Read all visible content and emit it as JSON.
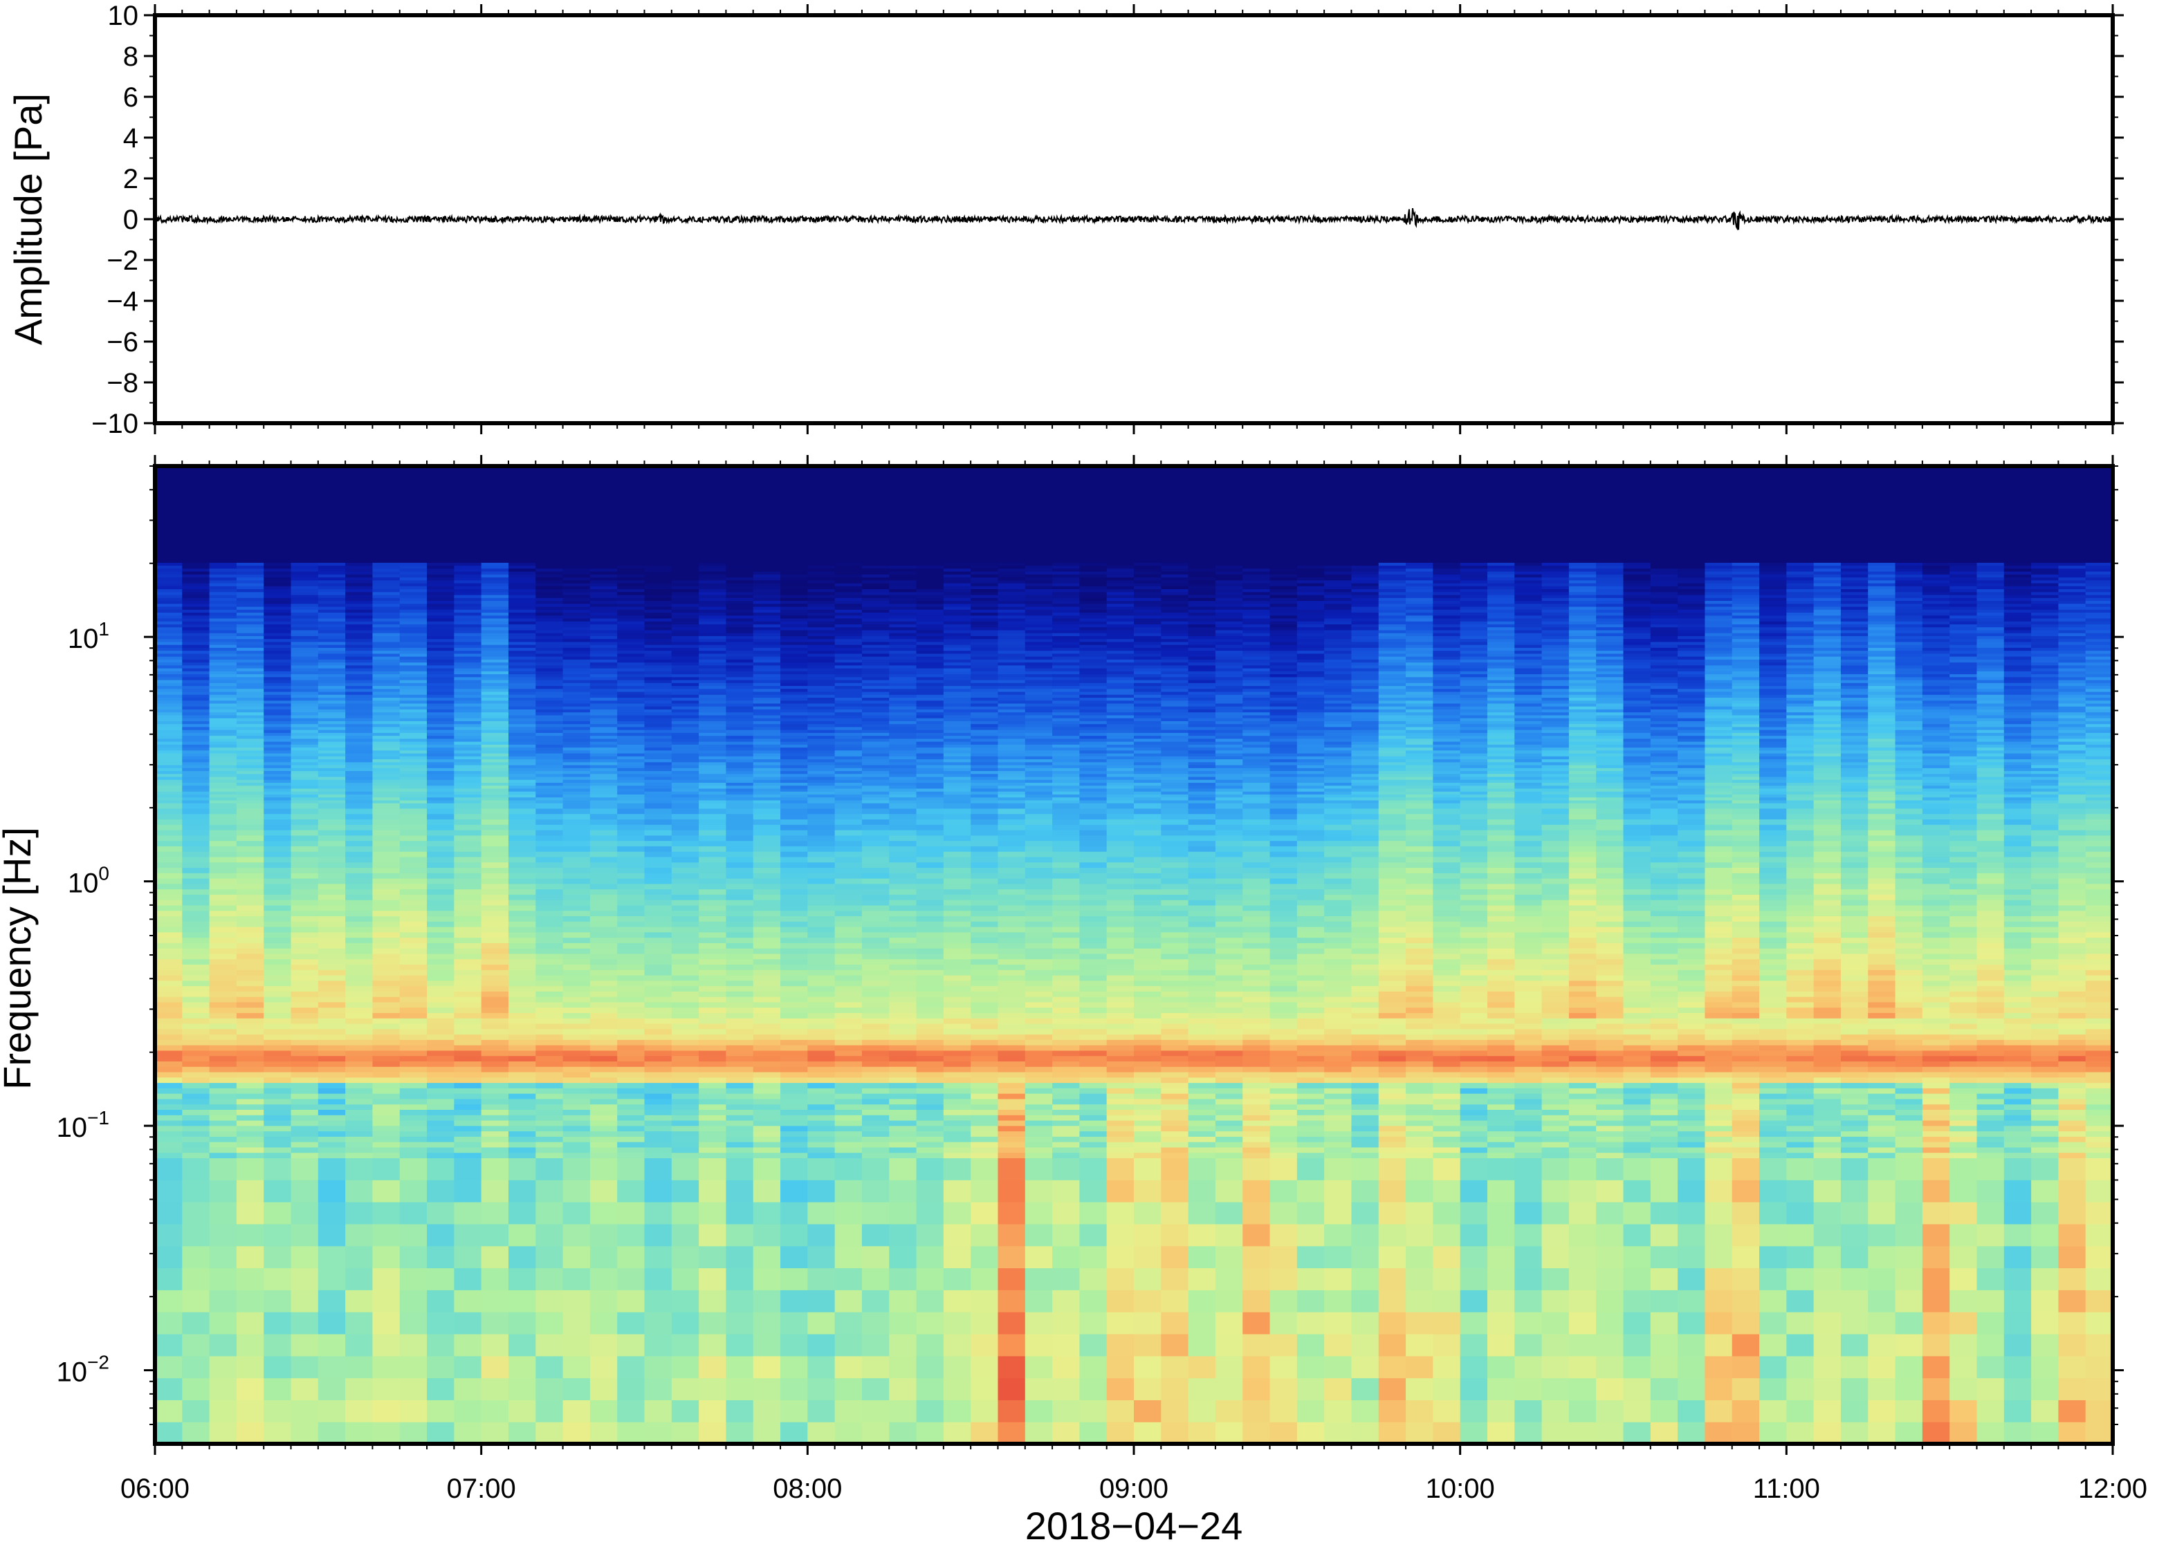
{
  "chart_data": [
    {
      "type": "line",
      "panel": "waveform",
      "ylabel": "Amplitude [Pa]",
      "ylim": [
        -10,
        10
      ],
      "yticks": [
        -10,
        -8,
        -6,
        -4,
        -2,
        0,
        2,
        4,
        6,
        8,
        10
      ],
      "ytick_labels": [
        "−10",
        "−8",
        "−6",
        "−4",
        "−2",
        "0",
        "2",
        "4",
        "6",
        "8",
        "10"
      ],
      "x_range": [
        "06:00",
        "12:00"
      ],
      "series": [
        {
          "color": "#000000",
          "mean": 0,
          "typical_peak": 0.15,
          "bursts": [
            {
              "time_hours": 9.85,
              "peak": 0.6
            },
            {
              "time_hours": 10.85,
              "peak": 0.55
            },
            {
              "time_hours": 7.55,
              "peak": 0.25
            }
          ]
        }
      ]
    },
    {
      "type": "heatmap",
      "panel": "spectrogram",
      "ylabel": "Frequency [Hz]",
      "xlabel": "2018−04−24",
      "x": [
        "06:00",
        "07:00",
        "08:00",
        "09:00",
        "10:00",
        "11:00",
        "12:00"
      ],
      "y_scale": "log",
      "ylim": [
        0.005,
        50
      ],
      "yticks": [
        {
          "base": "10",
          "exp": "−2",
          "value": 0.01
        },
        {
          "base": "10",
          "exp": "−1",
          "value": 0.1
        },
        {
          "base": "10",
          "exp": "0",
          "value": 1
        },
        {
          "base": "10",
          "exp": "1",
          "value": 10
        }
      ],
      "colormap": [
        "#0a0a78",
        "#0a1eb4",
        "#1450dc",
        "#2a8ef0",
        "#48c8f0",
        "#78e0c8",
        "#b0f0a0",
        "#e8f08c",
        "#f8c870",
        "#f88c50",
        "#e84a3a"
      ],
      "microbarom_band_hz": [
        0.15,
        0.28
      ],
      "microbarom_peak_hz": 0.19,
      "activity_hours": [
        6.0,
        6.25,
        6.5,
        6.75,
        7.0,
        9.85,
        10.1,
        10.4,
        10.85,
        11.1,
        11.3,
        11.6,
        11.9
      ],
      "lowfreq_hot_hours": [
        8.6,
        9.0,
        9.15,
        9.4,
        9.85,
        9.9,
        10.85,
        11.5,
        11.9
      ]
    }
  ]
}
